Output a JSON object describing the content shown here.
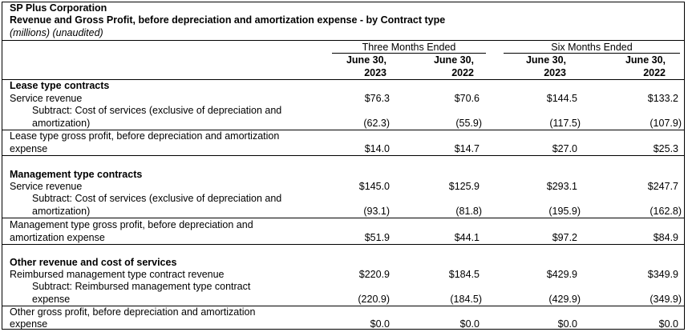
{
  "header": {
    "company": "SP Plus Corporation",
    "title": "Revenue and Gross Profit, before depreciation and amortization expense - by Contract type",
    "subtitle": "(millions) (unaudited)"
  },
  "periods": {
    "three_months": "Three Months Ended",
    "six_months": "Six Months Ended"
  },
  "columns": [
    {
      "line1": "June 30,",
      "line2": "2023"
    },
    {
      "line1": "June 30,",
      "line2": "2022"
    },
    {
      "line1": "June 30,",
      "line2": "2023"
    },
    {
      "line1": "June 30,",
      "line2": "2022"
    }
  ],
  "sections": {
    "lease": {
      "heading": "Lease type contracts",
      "service_revenue": {
        "label": "Service revenue",
        "values": [
          "$76.3",
          "$70.6",
          "$144.5",
          "$133.2"
        ]
      },
      "cost": {
        "label_line1": "Subtract: Cost of services (exclusive of depreciation and",
        "label_line2": "amortization)",
        "values": [
          "(62.3)",
          "(55.9)",
          "(117.5)",
          "(107.9)"
        ]
      },
      "gross": {
        "label_line1": "Lease type gross profit, before depreciation and amortization",
        "label_line2": "expense",
        "values": [
          "$14.0",
          "$14.7",
          "$27.0",
          "$25.3"
        ]
      }
    },
    "management": {
      "heading": "Management type contracts",
      "service_revenue": {
        "label": "Service revenue",
        "values": [
          "$145.0",
          "$125.9",
          "$293.1",
          "$247.7"
        ]
      },
      "cost": {
        "label_line1": "Subtract: Cost of services (exclusive of depreciation and",
        "label_line2": "amortization)",
        "values": [
          "(93.1)",
          "(81.8)",
          "(195.9)",
          "(162.8)"
        ]
      },
      "gross": {
        "label_line1": "Management type gross profit, before depreciation and",
        "label_line2": "amortization expense",
        "values": [
          "$51.9",
          "$44.1",
          "$97.2",
          "$84.9"
        ]
      }
    },
    "other": {
      "heading": "Other revenue and cost of services",
      "service_revenue": {
        "label": "Reimbursed management type contract revenue",
        "values": [
          "$220.9",
          "$184.5",
          "$429.9",
          "$349.9"
        ]
      },
      "cost": {
        "label_line1": "Subtract: Reimbursed management type contract",
        "label_line2": "expense",
        "values": [
          "(220.9)",
          "(184.5)",
          "(429.9)",
          "(349.9)"
        ]
      },
      "gross": {
        "label_line1": "Other gross profit, before depreciation and amortization",
        "label_line2": "expense",
        "values": [
          "$0.0",
          "$0.0",
          "$0.0",
          "$0.0"
        ]
      }
    }
  }
}
